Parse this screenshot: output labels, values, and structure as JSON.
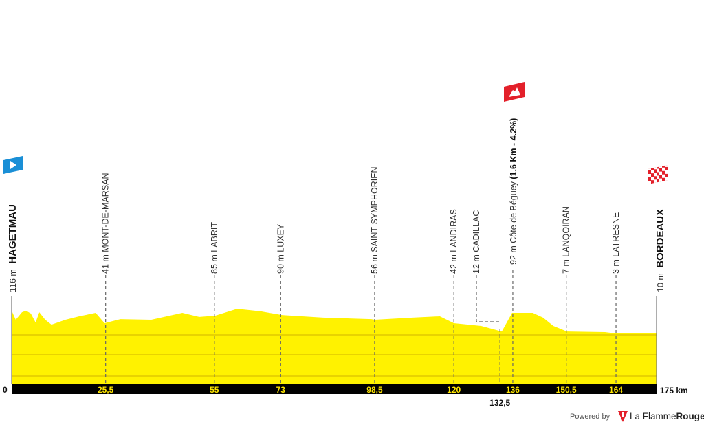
{
  "chart_data": {
    "type": "area",
    "title": "",
    "xlabel": "",
    "ylabel": "",
    "x_unit": "km",
    "xlim": [
      0,
      175
    ],
    "grid": true,
    "colors": {
      "fill": "#fff200",
      "grid": "#d2b400",
      "axis_bar": "#000000",
      "tick_text": "#ffe600",
      "start_flag": "#1a8fd6",
      "climb_flag": "#e3202a"
    },
    "profile": [
      [
        0,
        116
      ],
      [
        1.1,
        74
      ],
      [
        2.8,
        109
      ],
      [
        3.9,
        116
      ],
      [
        5.2,
        103
      ],
      [
        6.5,
        61
      ],
      [
        7.5,
        109
      ],
      [
        9.1,
        74
      ],
      [
        10.8,
        51
      ],
      [
        14.6,
        74
      ],
      [
        18.3,
        90
      ],
      [
        22.8,
        106
      ],
      [
        25.2,
        58
      ],
      [
        29.5,
        77
      ],
      [
        37.9,
        74
      ],
      [
        46.3,
        106
      ],
      [
        50.9,
        87
      ],
      [
        55.2,
        93
      ],
      [
        61.2,
        125
      ],
      [
        67.7,
        113
      ],
      [
        73.3,
        96
      ],
      [
        84.5,
        84
      ],
      [
        97.6,
        77
      ],
      [
        98.5,
        74
      ],
      [
        108.8,
        84
      ],
      [
        116.2,
        90
      ],
      [
        120,
        58
      ],
      [
        127.4,
        45
      ],
      [
        133,
        19
      ],
      [
        135.8,
        106
      ],
      [
        141.4,
        106
      ],
      [
        144.2,
        84
      ],
      [
        147,
        45
      ],
      [
        150.7,
        19
      ],
      [
        161,
        16
      ],
      [
        163.8,
        10
      ],
      [
        175,
        10
      ]
    ],
    "start": {
      "km": 0,
      "elev": "116 m",
      "name": "HAGETMAU",
      "axis_label": "0",
      "icon": "start-flag-icon"
    },
    "finish": {
      "km": 175,
      "elev": "10 m",
      "name": "BORDEAUX",
      "axis_label": "175 km",
      "icon": "finish-flag-icon"
    },
    "waypoints": [
      {
        "km": 25.5,
        "label": "41 m MONT-DE-MARSAN",
        "axis_label": "25,5"
      },
      {
        "km": 55,
        "label": "85 m LABRIT",
        "axis_label": "55"
      },
      {
        "km": 73,
        "label": "90 m LUXEY",
        "axis_label": "73"
      },
      {
        "km": 98.5,
        "label": "56 m SAINT-SYMPHORIEN",
        "axis_label": "98,5"
      },
      {
        "km": 120,
        "label": "42 m LANDIRAS",
        "axis_label": "120"
      },
      {
        "km": 132.5,
        "label": "12 m CADILLAC",
        "axis_label": "132,5",
        "offset": true
      },
      {
        "km": 150.5,
        "label": "7 m LANQOIRAN",
        "axis_label": "150,5"
      },
      {
        "km": 164,
        "label": "3 m LATRESNE",
        "axis_label": "164"
      }
    ],
    "climb": {
      "km": 136,
      "label": "92 m Côte de Béguey ",
      "detail": "(1.6 Km - 4.2%)",
      "axis_label": "136",
      "icon": "mountain-climb-icon"
    }
  },
  "footer": {
    "powered_by": "Powered by",
    "brand_part1": "La Flamme",
    "brand_part2": "Rouge"
  }
}
